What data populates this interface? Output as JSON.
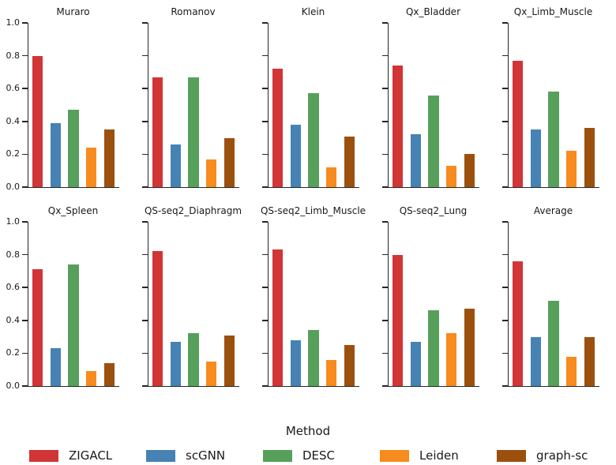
{
  "figure": {
    "background": "#ffffff",
    "axis_color": "#262626"
  },
  "chart_data": {
    "type": "bar",
    "layout": {
      "rows": 2,
      "cols": 5
    },
    "ylim": [
      0,
      1.0
    ],
    "yticks": [
      0.0,
      0.2,
      0.4,
      0.6,
      0.8,
      1.0
    ],
    "ytick_labels": [
      "0.0",
      "0.2",
      "0.4",
      "0.6",
      "0.8",
      "1.0"
    ],
    "xlabel": "Method",
    "grid": false,
    "legend_position": "bottom",
    "series": [
      {
        "name": "ZIGACL",
        "color": "#d13536"
      },
      {
        "name": "scGNN",
        "color": "#4682b4"
      },
      {
        "name": "DESC",
        "color": "#57a05b"
      },
      {
        "name": "Leiden",
        "color": "#f78b1e"
      },
      {
        "name": "graph-sc",
        "color": "#9c500e"
      }
    ],
    "subplots": [
      {
        "title": "Muraro",
        "values": [
          0.8,
          0.39,
          0.47,
          0.24,
          0.35
        ]
      },
      {
        "title": "Romanov",
        "values": [
          0.67,
          0.26,
          0.67,
          0.17,
          0.3
        ]
      },
      {
        "title": "Klein",
        "values": [
          0.72,
          0.38,
          0.57,
          0.12,
          0.31
        ]
      },
      {
        "title": "Qx_Bladder",
        "values": [
          0.74,
          0.32,
          0.56,
          0.13,
          0.2
        ]
      },
      {
        "title": "Qx_Limb_Muscle",
        "values": [
          0.77,
          0.35,
          0.58,
          0.22,
          0.36
        ]
      },
      {
        "title": "Qx_Spleen",
        "values": [
          0.71,
          0.23,
          0.74,
          0.09,
          0.14
        ]
      },
      {
        "title": "QS-seq2_Diaphragm",
        "values": [
          0.82,
          0.27,
          0.32,
          0.15,
          0.31
        ]
      },
      {
        "title": "QS-seq2_Limb_Muscle",
        "values": [
          0.83,
          0.28,
          0.34,
          0.16,
          0.25
        ]
      },
      {
        "title": "QS-seq2_Lung",
        "values": [
          0.8,
          0.27,
          0.46,
          0.32,
          0.47
        ]
      },
      {
        "title": "Average",
        "values": [
          0.76,
          0.3,
          0.52,
          0.18,
          0.3
        ]
      }
    ]
  }
}
